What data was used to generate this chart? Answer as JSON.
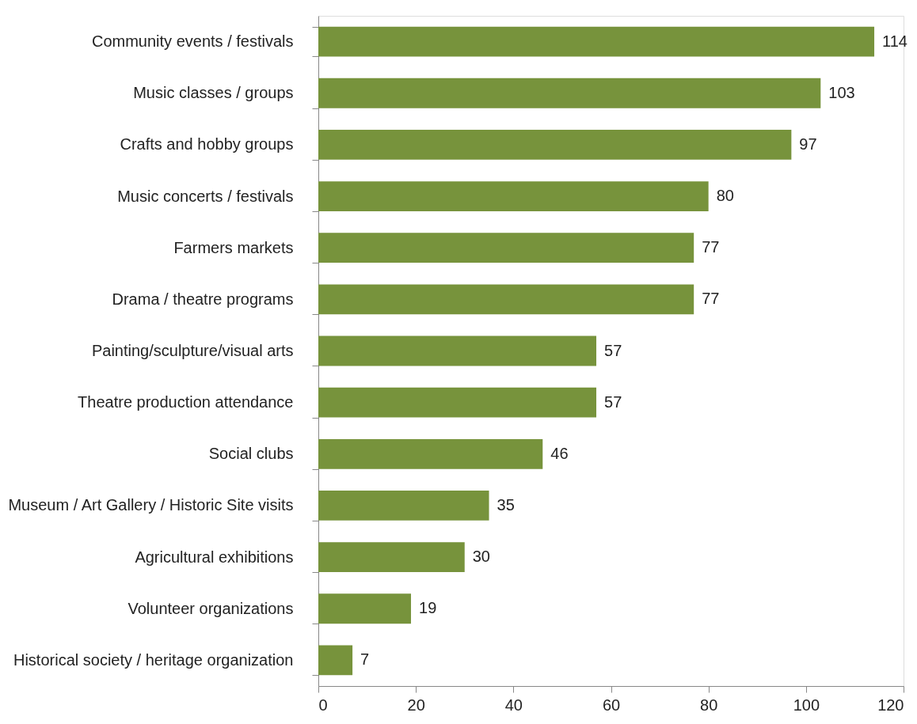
{
  "chart_data": {
    "type": "bar",
    "orientation": "horizontal",
    "categories": [
      "Community events / festivals",
      "Music classes / groups",
      "Crafts and hobby groups",
      "Music concerts / festivals",
      "Farmers markets",
      "Drama / theatre programs",
      "Painting/sculpture/visual arts",
      "Theatre production attendance",
      "Social clubs",
      "Museum / Art Gallery / Historic Site visits",
      "Agricultural exhibitions",
      "Volunteer organizations",
      "Historical society / heritage organization"
    ],
    "values": [
      114,
      103,
      97,
      80,
      77,
      77,
      57,
      57,
      46,
      35,
      30,
      19,
      7
    ],
    "color": "#77933c",
    "xlim": [
      0,
      120
    ],
    "xticks": [
      0,
      20,
      40,
      60,
      80,
      100,
      120
    ],
    "grid": false,
    "data_labels": true
  }
}
